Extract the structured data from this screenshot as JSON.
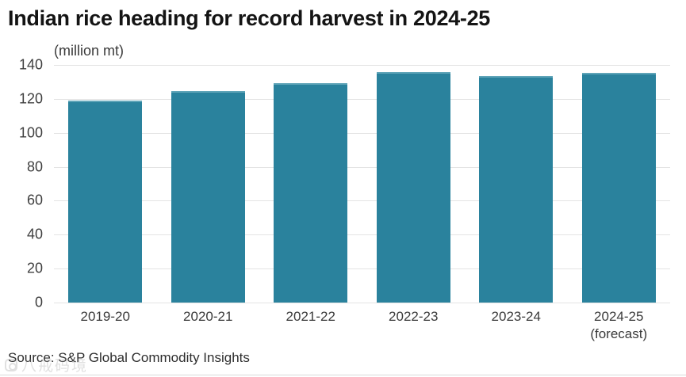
{
  "title": "Indian rice heading for record harvest in 2024-25",
  "source": "Source: S&P Global Commodity Insights",
  "watermark": "八戒码境",
  "colors": {
    "bar": "#2a829d",
    "bar_top_edge": "#5fa4b8",
    "title_text": "#141414",
    "axis_text": "#3a3a3a",
    "gridline": "#e4e4e4",
    "background": "#ffffff",
    "bottom_divider": "#d8d8d8"
  },
  "chart_data": {
    "type": "bar",
    "title": "Indian rice heading for record harvest in 2024-25",
    "subtitle": "(million mt)",
    "xlabel": "",
    "ylabel": "(million mt)",
    "categories": [
      "2019-20",
      "2020-21",
      "2021-22",
      "2022-23",
      "2023-24",
      "2024-25"
    ],
    "category_sublabels": [
      "",
      "",
      "",
      "",
      "",
      "(forecast)"
    ],
    "values": [
      118.9,
      124.4,
      129.5,
      135.8,
      133.5,
      135.5
    ],
    "ylim": [
      0,
      140
    ],
    "yticks": [
      0,
      20,
      40,
      60,
      80,
      100,
      120,
      140
    ],
    "grid": true,
    "legend_position": "none"
  }
}
